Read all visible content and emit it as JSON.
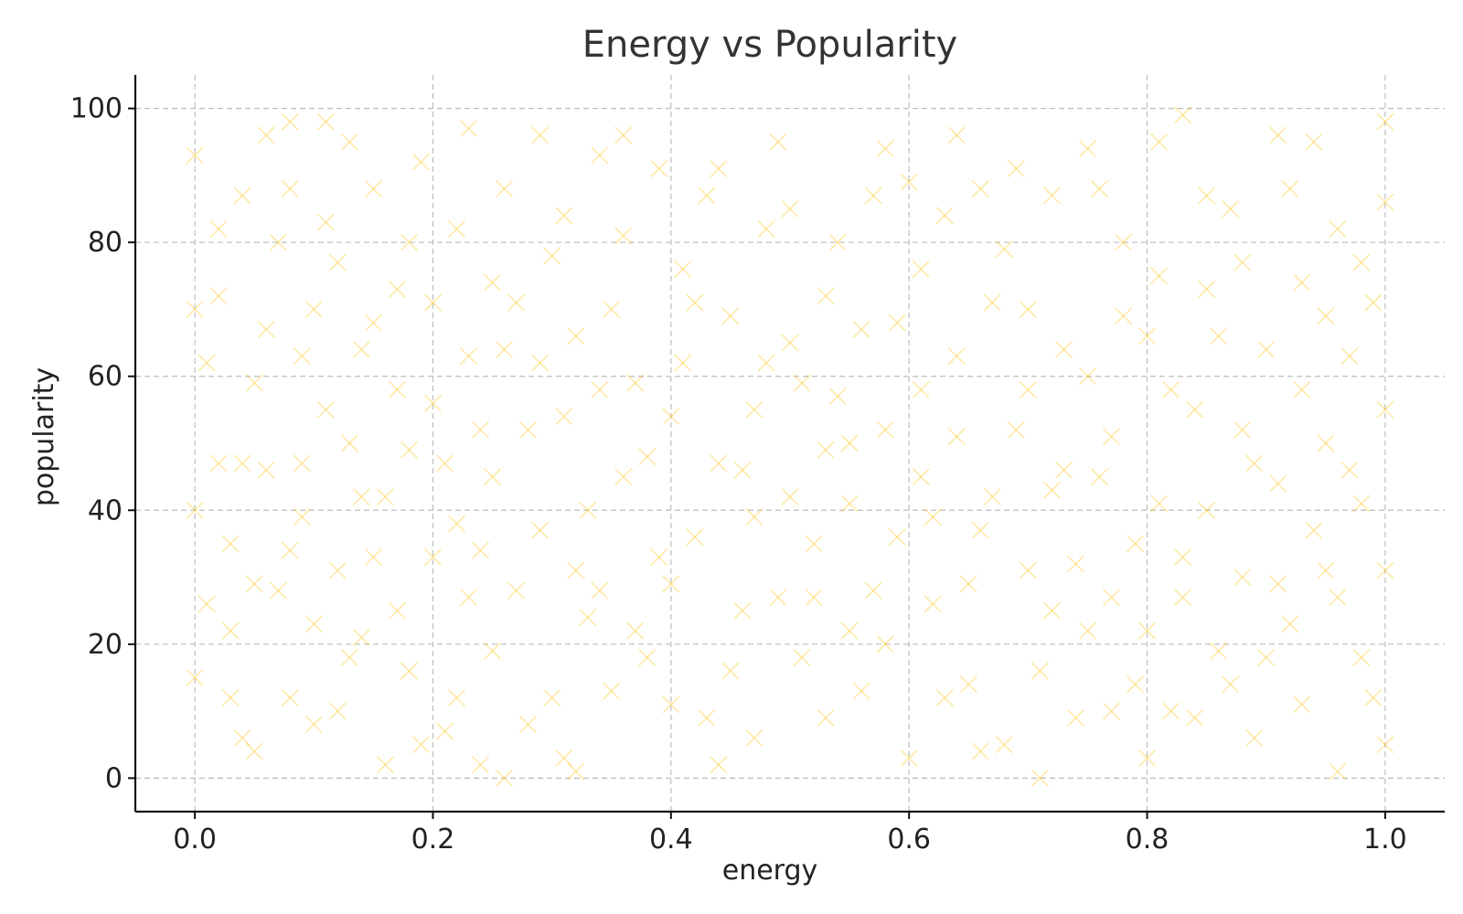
{
  "chart_data": {
    "type": "scatter",
    "title": "Energy vs Popularity",
    "xlabel": "energy",
    "ylabel": "popularity",
    "xlim": [
      -0.05,
      1.05
    ],
    "ylim": [
      -5,
      105
    ],
    "xticks": [
      0.0,
      0.2,
      0.4,
      0.6,
      0.8,
      1.0
    ],
    "xtick_labels": [
      "0.0",
      "0.2",
      "0.4",
      "0.6",
      "0.8",
      "1.0"
    ],
    "yticks": [
      0,
      20,
      40,
      60,
      80,
      100
    ],
    "ytick_labels": [
      "0",
      "20",
      "40",
      "60",
      "80",
      "100"
    ],
    "grid": true,
    "marker": "x",
    "color": "#FFC107",
    "alpha": 0.35,
    "series": [
      {
        "points": [
          [
            0.0,
            93
          ],
          [
            0.01,
            26
          ],
          [
            0.02,
            72
          ],
          [
            0.02,
            47
          ],
          [
            0.03,
            35
          ],
          [
            0.03,
            22
          ],
          [
            0.04,
            87
          ],
          [
            0.04,
            47
          ],
          [
            0.05,
            59
          ],
          [
            0.05,
            4
          ],
          [
            0.06,
            46
          ],
          [
            0.06,
            96
          ],
          [
            0.07,
            28
          ],
          [
            0.08,
            98
          ],
          [
            0.08,
            88
          ],
          [
            0.08,
            12
          ],
          [
            0.09,
            63
          ],
          [
            0.09,
            39
          ],
          [
            0.1,
            70
          ],
          [
            0.1,
            8
          ],
          [
            0.11,
            83
          ],
          [
            0.11,
            55
          ],
          [
            0.12,
            31
          ],
          [
            0.12,
            10
          ],
          [
            0.13,
            95
          ],
          [
            0.13,
            50
          ],
          [
            0.14,
            64
          ],
          [
            0.14,
            21
          ],
          [
            0.15,
            88
          ],
          [
            0.15,
            33
          ],
          [
            0.16,
            42
          ],
          [
            0.17,
            73
          ],
          [
            0.17,
            25
          ],
          [
            0.18,
            49
          ],
          [
            0.18,
            16
          ],
          [
            0.19,
            92
          ],
          [
            0.2,
            33
          ],
          [
            0.2,
            56
          ],
          [
            0.21,
            7
          ],
          [
            0.22,
            82
          ],
          [
            0.22,
            12
          ],
          [
            0.23,
            97
          ],
          [
            0.23,
            63
          ],
          [
            0.24,
            34
          ],
          [
            0.24,
            2
          ],
          [
            0.25,
            74
          ],
          [
            0.25,
            45
          ],
          [
            0.26,
            0
          ],
          [
            0.26,
            88
          ],
          [
            0.27,
            28
          ],
          [
            0.28,
            52
          ],
          [
            0.29,
            62
          ],
          [
            0.29,
            37
          ],
          [
            0.3,
            12
          ],
          [
            0.31,
            54
          ],
          [
            0.31,
            84
          ],
          [
            0.32,
            66
          ],
          [
            0.32,
            1
          ],
          [
            0.33,
            24
          ],
          [
            0.34,
            93
          ],
          [
            0.34,
            28
          ],
          [
            0.35,
            13
          ],
          [
            0.36,
            45
          ],
          [
            0.36,
            81
          ],
          [
            0.37,
            59
          ],
          [
            0.38,
            18
          ],
          [
            0.39,
            91
          ],
          [
            0.4,
            11
          ],
          [
            0.4,
            54
          ],
          [
            0.41,
            76
          ],
          [
            0.42,
            36
          ],
          [
            0.43,
            9
          ],
          [
            0.44,
            47
          ],
          [
            0.44,
            91
          ],
          [
            0.45,
            69
          ],
          [
            0.46,
            25
          ],
          [
            0.47,
            55
          ],
          [
            0.47,
            6
          ],
          [
            0.48,
            82
          ],
          [
            0.49,
            95
          ],
          [
            0.5,
            42
          ],
          [
            0.5,
            65
          ],
          [
            0.51,
            18
          ],
          [
            0.52,
            35
          ],
          [
            0.53,
            72
          ],
          [
            0.53,
            9
          ],
          [
            0.54,
            80
          ],
          [
            0.55,
            50
          ],
          [
            0.55,
            41
          ],
          [
            0.56,
            13
          ],
          [
            0.57,
            28
          ],
          [
            0.58,
            52
          ],
          [
            0.58,
            94
          ],
          [
            0.59,
            68
          ],
          [
            0.6,
            3
          ],
          [
            0.61,
            45
          ],
          [
            0.61,
            76
          ],
          [
            0.62,
            26
          ],
          [
            0.63,
            12
          ],
          [
            0.64,
            96
          ],
          [
            0.64,
            63
          ],
          [
            0.65,
            14
          ],
          [
            0.66,
            88
          ],
          [
            0.66,
            37
          ],
          [
            0.67,
            71
          ],
          [
            0.68,
            5
          ],
          [
            0.69,
            52
          ],
          [
            0.7,
            70
          ],
          [
            0.7,
            31
          ],
          [
            0.71,
            0
          ],
          [
            0.72,
            87
          ],
          [
            0.72,
            25
          ],
          [
            0.73,
            46
          ],
          [
            0.74,
            9
          ],
          [
            0.75,
            94
          ],
          [
            0.75,
            60
          ],
          [
            0.76,
            45
          ],
          [
            0.77,
            27
          ],
          [
            0.77,
            10
          ],
          [
            0.78,
            80
          ],
          [
            0.79,
            35
          ],
          [
            0.8,
            66
          ],
          [
            0.8,
            3
          ],
          [
            0.81,
            41
          ],
          [
            0.81,
            95
          ],
          [
            0.82,
            58
          ],
          [
            0.83,
            27
          ],
          [
            0.83,
            99
          ],
          [
            0.84,
            9
          ],
          [
            0.85,
            73
          ],
          [
            0.85,
            40
          ],
          [
            0.86,
            19
          ],
          [
            0.87,
            85
          ],
          [
            0.88,
            30
          ],
          [
            0.88,
            52
          ],
          [
            0.89,
            6
          ],
          [
            0.9,
            64
          ],
          [
            0.91,
            44
          ],
          [
            0.91,
            96
          ],
          [
            0.92,
            23
          ],
          [
            0.93,
            74
          ],
          [
            0.93,
            11
          ],
          [
            0.94,
            95
          ],
          [
            0.95,
            50
          ],
          [
            0.95,
            31
          ],
          [
            0.96,
            82
          ],
          [
            0.96,
            1
          ],
          [
            0.97,
            63
          ],
          [
            0.98,
            18
          ],
          [
            0.98,
            41
          ],
          [
            0.99,
            71
          ],
          [
            1.0,
            86
          ],
          [
            1.0,
            31
          ],
          [
            0.01,
            62
          ],
          [
            0.03,
            12
          ],
          [
            0.05,
            29
          ],
          [
            0.07,
            80
          ],
          [
            0.09,
            47
          ],
          [
            0.11,
            98
          ],
          [
            0.13,
            18
          ],
          [
            0.15,
            68
          ],
          [
            0.17,
            58
          ],
          [
            0.19,
            5
          ],
          [
            0.21,
            47
          ],
          [
            0.23,
            27
          ],
          [
            0.25,
            19
          ],
          [
            0.27,
            71
          ],
          [
            0.29,
            96
          ],
          [
            0.31,
            3
          ],
          [
            0.33,
            40
          ],
          [
            0.35,
            70
          ],
          [
            0.37,
            22
          ],
          [
            0.39,
            33
          ],
          [
            0.41,
            62
          ],
          [
            0.43,
            87
          ],
          [
            0.45,
            16
          ],
          [
            0.47,
            39
          ],
          [
            0.49,
            27
          ],
          [
            0.51,
            59
          ],
          [
            0.53,
            49
          ],
          [
            0.55,
            22
          ],
          [
            0.57,
            87
          ],
          [
            0.59,
            36
          ],
          [
            0.61,
            58
          ],
          [
            0.63,
            84
          ],
          [
            0.65,
            29
          ],
          [
            0.67,
            42
          ],
          [
            0.69,
            91
          ],
          [
            0.71,
            16
          ],
          [
            0.73,
            64
          ],
          [
            0.75,
            22
          ],
          [
            0.77,
            51
          ],
          [
            0.79,
            14
          ],
          [
            0.81,
            75
          ],
          [
            0.83,
            33
          ],
          [
            0.85,
            87
          ],
          [
            0.87,
            14
          ],
          [
            0.89,
            47
          ],
          [
            0.91,
            29
          ],
          [
            0.93,
            58
          ],
          [
            0.95,
            69
          ],
          [
            0.97,
            46
          ],
          [
            0.99,
            12
          ],
          [
            0.02,
            82
          ],
          [
            0.04,
            6
          ],
          [
            0.06,
            67
          ],
          [
            0.08,
            34
          ],
          [
            0.1,
            23
          ],
          [
            0.12,
            77
          ],
          [
            0.14,
            42
          ],
          [
            0.16,
            2
          ],
          [
            0.18,
            80
          ],
          [
            0.2,
            71
          ],
          [
            0.22,
            38
          ],
          [
            0.24,
            52
          ],
          [
            0.26,
            64
          ],
          [
            0.28,
            8
          ],
          [
            0.3,
            78
          ],
          [
            0.32,
            31
          ],
          [
            0.34,
            58
          ],
          [
            0.36,
            96
          ],
          [
            0.38,
            48
          ],
          [
            0.4,
            29
          ],
          [
            0.42,
            71
          ],
          [
            0.44,
            2
          ],
          [
            0.46,
            46
          ],
          [
            0.48,
            62
          ],
          [
            0.5,
            85
          ],
          [
            0.52,
            27
          ],
          [
            0.54,
            57
          ],
          [
            0.56,
            67
          ],
          [
            0.58,
            20
          ],
          [
            0.6,
            89
          ],
          [
            0.62,
            39
          ],
          [
            0.64,
            51
          ],
          [
            0.66,
            4
          ],
          [
            0.68,
            79
          ],
          [
            0.7,
            58
          ],
          [
            0.72,
            43
          ],
          [
            0.74,
            32
          ],
          [
            0.76,
            88
          ],
          [
            0.78,
            69
          ],
          [
            0.8,
            22
          ],
          [
            0.82,
            10
          ],
          [
            0.84,
            55
          ],
          [
            0.86,
            66
          ],
          [
            0.88,
            77
          ],
          [
            0.9,
            18
          ],
          [
            0.92,
            88
          ],
          [
            0.94,
            37
          ],
          [
            0.96,
            27
          ],
          [
            0.98,
            77
          ],
          [
            0.0,
            40
          ],
          [
            0.0,
            70
          ],
          [
            0.0,
            15
          ],
          [
            1.0,
            55
          ],
          [
            1.0,
            5
          ],
          [
            1.0,
            98
          ]
        ]
      }
    ]
  }
}
